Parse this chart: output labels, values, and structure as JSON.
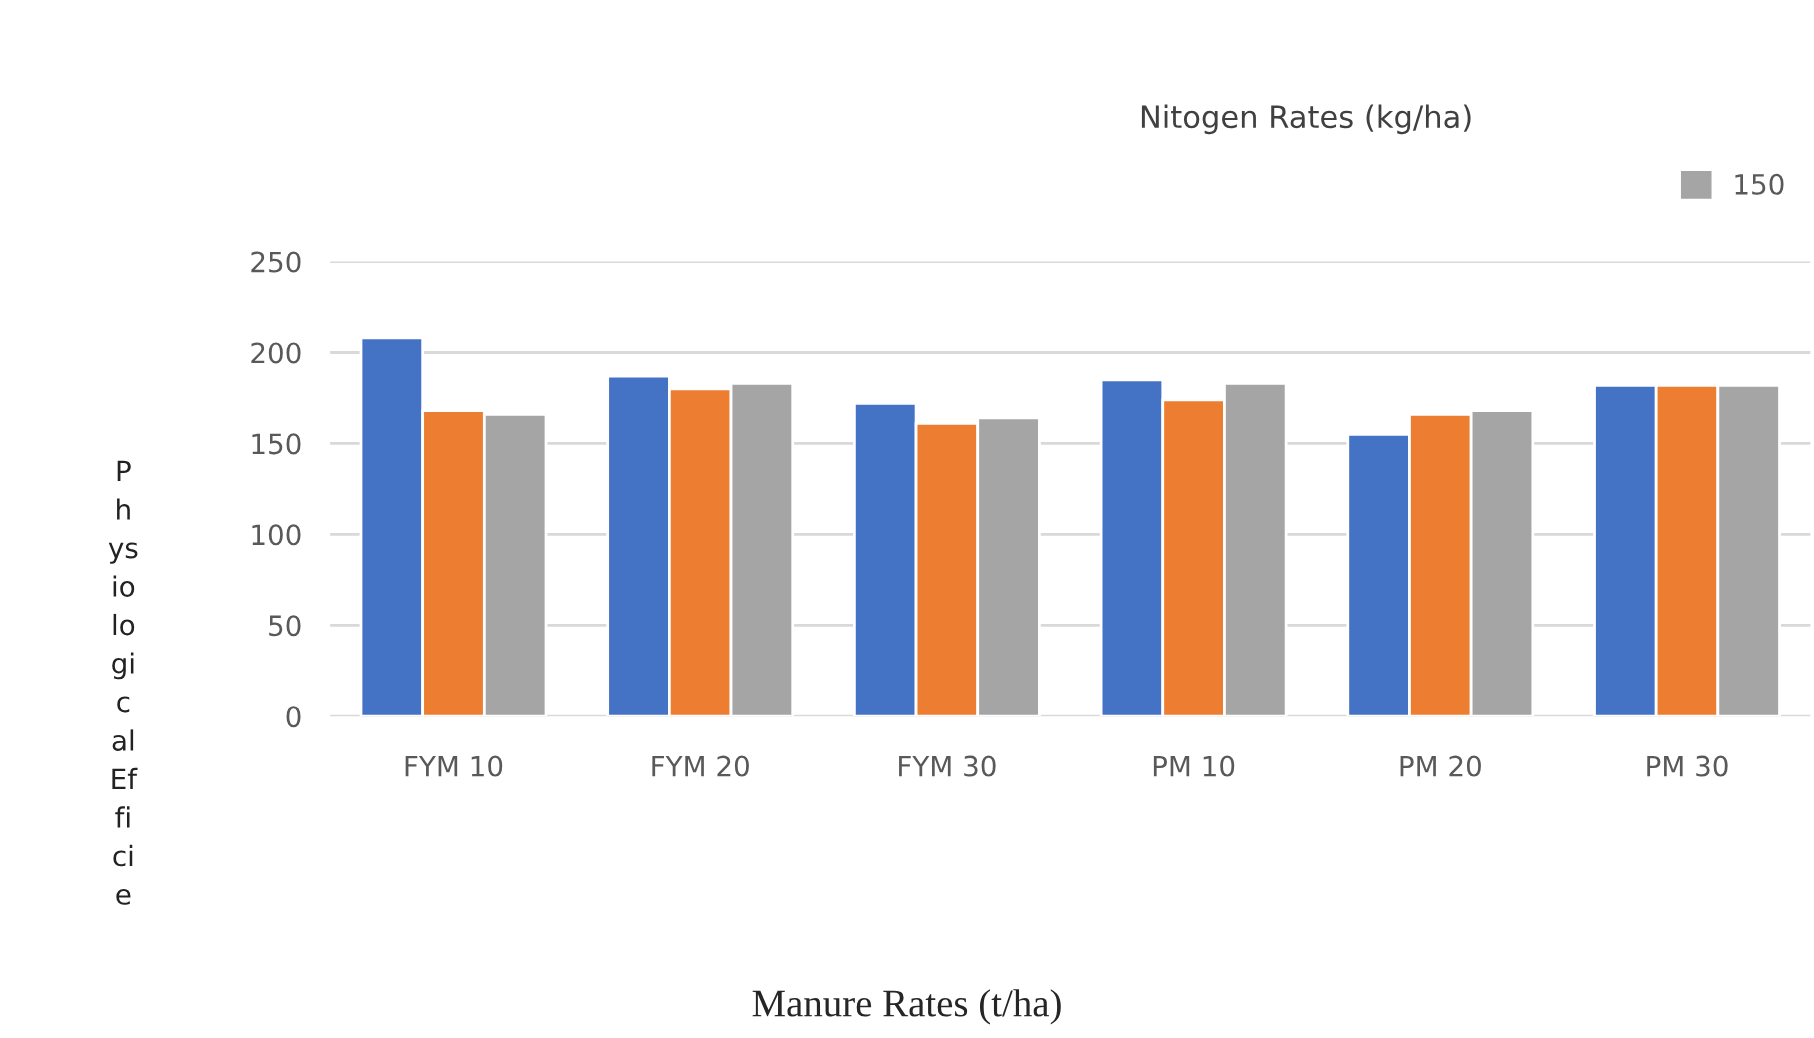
{
  "chart_data": {
    "type": "bar",
    "legend_title": "Nitogen Rates (kg/ha)",
    "annotations": [
      "Manure Rates (t/ha)"
    ],
    "ylabel": "P\nh\nys\nio\nlo\ngi\nc\nal\nEf\nfi\nci\ne",
    "categories": [
      "FYM 10",
      "FYM 20",
      "FYM 30",
      "PM 10",
      "PM 20",
      "PM 30"
    ],
    "series": [
      {
        "color": "#4472c4",
        "values": [
          208,
          187,
          172,
          185,
          155,
          182
        ]
      },
      {
        "color": "#ed7d31",
        "values": [
          168,
          180,
          161,
          174,
          166,
          182
        ]
      },
      {
        "name": "150",
        "color": "#a5a5a5",
        "values": [
          166,
          183,
          164,
          183,
          168,
          182
        ]
      }
    ],
    "ylim": [
      0,
      250
    ],
    "yticks": [
      0,
      50,
      100,
      150,
      200,
      250
    ],
    "grid": "y",
    "legend": "top right"
  }
}
